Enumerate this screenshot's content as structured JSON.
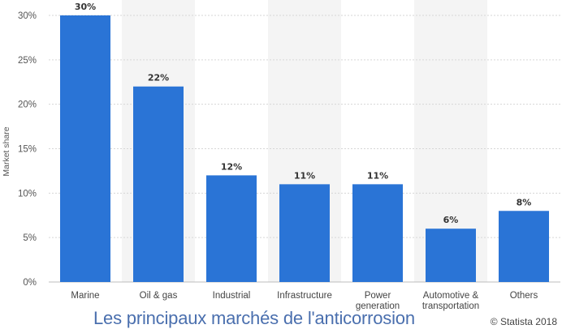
{
  "chart_data": {
    "type": "bar",
    "categories": [
      [
        "Marine"
      ],
      [
        "Oil & gas"
      ],
      [
        "Industrial"
      ],
      [
        "Infrastructure"
      ],
      [
        "Power",
        "generation"
      ],
      [
        "Automotive &",
        "transportation"
      ],
      [
        "Others"
      ]
    ],
    "values": [
      30,
      22,
      12,
      11,
      11,
      6,
      8
    ],
    "value_labels": [
      "30%",
      "22%",
      "12%",
      "11%",
      "11%",
      "6%",
      "8%"
    ],
    "ylabel": "Market share",
    "ylim": [
      0,
      30
    ],
    "yticks": [
      0,
      5,
      10,
      15,
      20,
      25,
      30
    ],
    "ytick_labels": [
      "0%",
      "5%",
      "10%",
      "15%",
      "20%",
      "25%",
      "30%"
    ],
    "grid": true,
    "bar_color": "#2a74d6"
  },
  "caption": "Les principaux marchés de l'anticorrosion",
  "credit": "© Statista 2018"
}
